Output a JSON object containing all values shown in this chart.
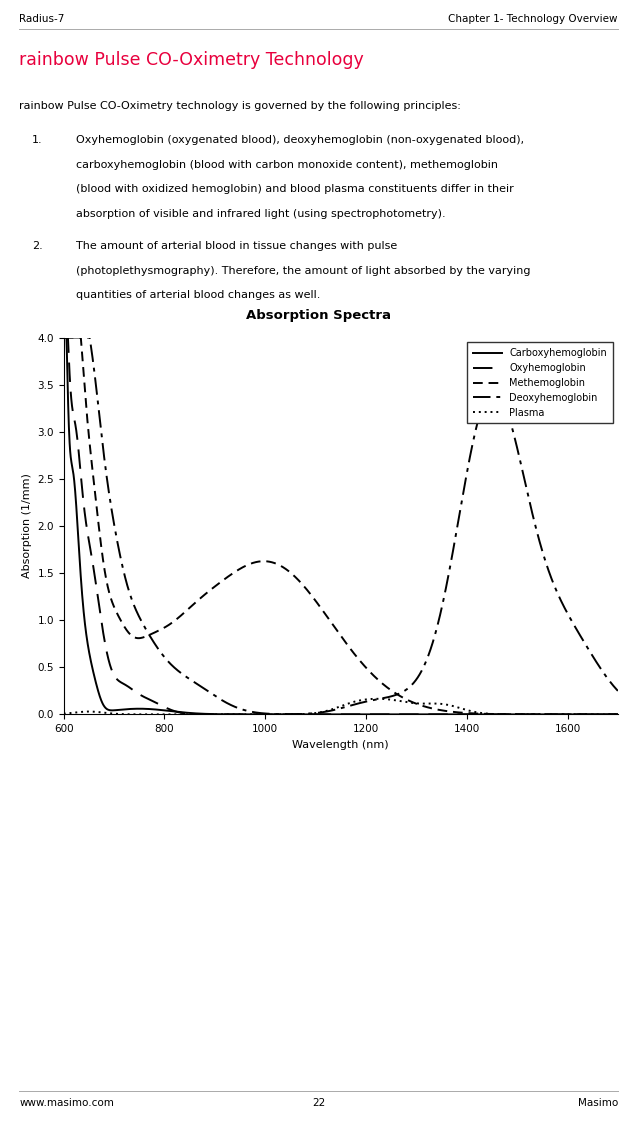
{
  "header_left": "Radius-7",
  "header_right": "Chapter 1- Technology Overview",
  "footer_left": "www.masimo.com",
  "footer_center": "22",
  "footer_right": "Masimo",
  "title_rainbow": "rainbow Pulse CO-Oximetry Technology",
  "title_color": "#E8003D",
  "body_text": "rainbow Pulse CO-Oximetry technology is governed by the following principles:",
  "item1": "Oxyhemoglobin (oxygenated blood), deoxyhemoglobin (non-oxygenated blood),\ncarboxyhemoglobin (blood with carbon monoxide content), methemoglobin\n(blood with oxidized hemoglobin) and blood plasma constituents differ in their\nabsorption of visible and infrared light (using spectrophotometry).",
  "item2": "The amount of arterial blood in tissue changes with pulse\n(photoplethysmography). Therefore, the amount of light absorbed by the varying\nquantities of arterial blood changes as well.",
  "chart_title": "Absorption Spectra",
  "xlabel": "Wavelength (nm)",
  "ylabel": "Absorption (1/mm)",
  "xlim": [
    600,
    1700
  ],
  "ylim": [
    0,
    4.0
  ],
  "xticks": [
    600,
    800,
    1000,
    1200,
    1400,
    1600
  ],
  "yticks": [
    0,
    0.5,
    1.0,
    1.5,
    2.0,
    2.5,
    3.0,
    3.5,
    4.0
  ],
  "bg_color": "#ffffff",
  "text_color": "#000000",
  "header_fontsize": 7.5,
  "body_fontsize": 8.0,
  "title_fontsize": 12.5,
  "chart_title_fontsize": 9.5
}
